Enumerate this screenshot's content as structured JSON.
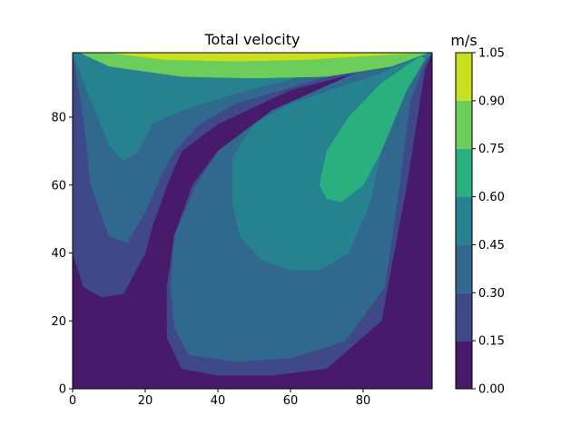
{
  "chart_data": {
    "type": "contour",
    "title": "Total velocity",
    "xlabel": "",
    "ylabel": "",
    "xlim": [
      0,
      99
    ],
    "ylim": [
      0,
      99
    ],
    "x_ticks": [
      0,
      20,
      40,
      60,
      80
    ],
    "y_ticks": [
      0,
      20,
      40,
      60,
      80
    ],
    "colorbar": {
      "label": "m/s",
      "levels": [
        0.0,
        0.15,
        0.3,
        0.45,
        0.6,
        0.75,
        0.9,
        1.05
      ],
      "tick_labels": [
        "0.00",
        "0.15",
        "0.30",
        "0.45",
        "0.60",
        "0.75",
        "0.90",
        "1.05"
      ],
      "colors": [
        "#481a6c",
        "#3f4889",
        "#31688e",
        "#26828e",
        "#2ab07f",
        "#6ccd5a",
        "#c8e020"
      ]
    },
    "regions": [
      {
        "range": "0.00-0.15",
        "points": [
          [
            0,
            0
          ],
          [
            99,
            0
          ],
          [
            99,
            99
          ],
          [
            97,
            94
          ],
          [
            92,
            60
          ],
          [
            85,
            20
          ],
          [
            70,
            6
          ],
          [
            55,
            4
          ],
          [
            40,
            4
          ],
          [
            30,
            6
          ],
          [
            26,
            15
          ],
          [
            26,
            30
          ],
          [
            28,
            45
          ],
          [
            33,
            60
          ],
          [
            40,
            70
          ],
          [
            55,
            82
          ],
          [
            80,
            94
          ],
          [
            96,
            98
          ],
          [
            60,
            88
          ],
          [
            40,
            78
          ],
          [
            30,
            70
          ],
          [
            26,
            60
          ],
          [
            24,
            50
          ],
          [
            20,
            40
          ],
          [
            15,
            32
          ],
          [
            10,
            28
          ],
          [
            5,
            26
          ],
          [
            2,
            24
          ],
          [
            0,
            22
          ]
        ]
      },
      {
        "range": "0.15-0.30",
        "points": [
          [
            0,
            99
          ],
          [
            0,
            40
          ],
          [
            3,
            30
          ],
          [
            8,
            27
          ],
          [
            14,
            28
          ],
          [
            20,
            40
          ],
          [
            22,
            48
          ],
          [
            26,
            60
          ],
          [
            30,
            70
          ],
          [
            40,
            78
          ],
          [
            60,
            88
          ],
          [
            96,
            98
          ],
          [
            80,
            94
          ],
          [
            55,
            82
          ],
          [
            40,
            70
          ],
          [
            33,
            60
          ],
          [
            28,
            45
          ],
          [
            26,
            30
          ],
          [
            26,
            15
          ],
          [
            30,
            6
          ],
          [
            40,
            4
          ],
          [
            55,
            4
          ],
          [
            70,
            6
          ],
          [
            85,
            20
          ],
          [
            92,
            60
          ],
          [
            97,
            94
          ],
          [
            99,
            99
          ]
        ]
      },
      {
        "range": "0.30-0.45",
        "points": [
          [
            0,
            99
          ],
          [
            3,
            80
          ],
          [
            5,
            60
          ],
          [
            10,
            45
          ],
          [
            15,
            43
          ],
          [
            20,
            52
          ],
          [
            24,
            62
          ],
          [
            28,
            70
          ],
          [
            35,
            78
          ],
          [
            45,
            84
          ],
          [
            70,
            92
          ],
          [
            96,
            98
          ],
          [
            80,
            94
          ],
          [
            55,
            82
          ],
          [
            40,
            70
          ],
          [
            34,
            60
          ],
          [
            28,
            45
          ],
          [
            27,
            30
          ],
          [
            28,
            18
          ],
          [
            32,
            10
          ],
          [
            45,
            8
          ],
          [
            60,
            9
          ],
          [
            75,
            14
          ],
          [
            86,
            30
          ],
          [
            90,
            60
          ],
          [
            93,
            85
          ],
          [
            97,
            96
          ],
          [
            99,
            99
          ]
        ]
      },
      {
        "range": "0.45-0.60",
        "points": [
          [
            0,
            99
          ],
          [
            5,
            85
          ],
          [
            10,
            72
          ],
          [
            14,
            67
          ],
          [
            18,
            70
          ],
          [
            22,
            78
          ],
          [
            30,
            82
          ],
          [
            45,
            87
          ],
          [
            70,
            94
          ],
          [
            96,
            98
          ],
          [
            85,
            93
          ],
          [
            60,
            84
          ],
          [
            50,
            78
          ],
          [
            44,
            68
          ],
          [
            44,
            55
          ],
          [
            46,
            45
          ],
          [
            52,
            38
          ],
          [
            60,
            35
          ],
          [
            68,
            35
          ],
          [
            76,
            40
          ],
          [
            82,
            55
          ],
          [
            86,
            75
          ],
          [
            92,
            90
          ],
          [
            97,
            97
          ],
          [
            99,
            99
          ],
          [
            85,
            98
          ],
          [
            40,
            95
          ],
          [
            10,
            97
          ]
        ]
      },
      {
        "range": "0.60-0.75",
        "points": [
          [
            96,
            98
          ],
          [
            85,
            90
          ],
          [
            76,
            80
          ],
          [
            70,
            70
          ],
          [
            68,
            60
          ],
          [
            70,
            56
          ],
          [
            74,
            55
          ],
          [
            80,
            60
          ],
          [
            85,
            70
          ],
          [
            92,
            88
          ],
          [
            97,
            97
          ]
        ]
      },
      {
        "range": "0.75-0.90",
        "points": [
          [
            2,
            99
          ],
          [
            10,
            95
          ],
          [
            30,
            92
          ],
          [
            50,
            91.5
          ],
          [
            70,
            92
          ],
          [
            88,
            95
          ],
          [
            98,
            99
          ]
        ]
      },
      {
        "range": "0.90-1.05",
        "points": [
          [
            10,
            99
          ],
          [
            25,
            97
          ],
          [
            45,
            96.5
          ],
          [
            65,
            97
          ],
          [
            80,
            98
          ],
          [
            95,
            99
          ]
        ]
      }
    ]
  }
}
